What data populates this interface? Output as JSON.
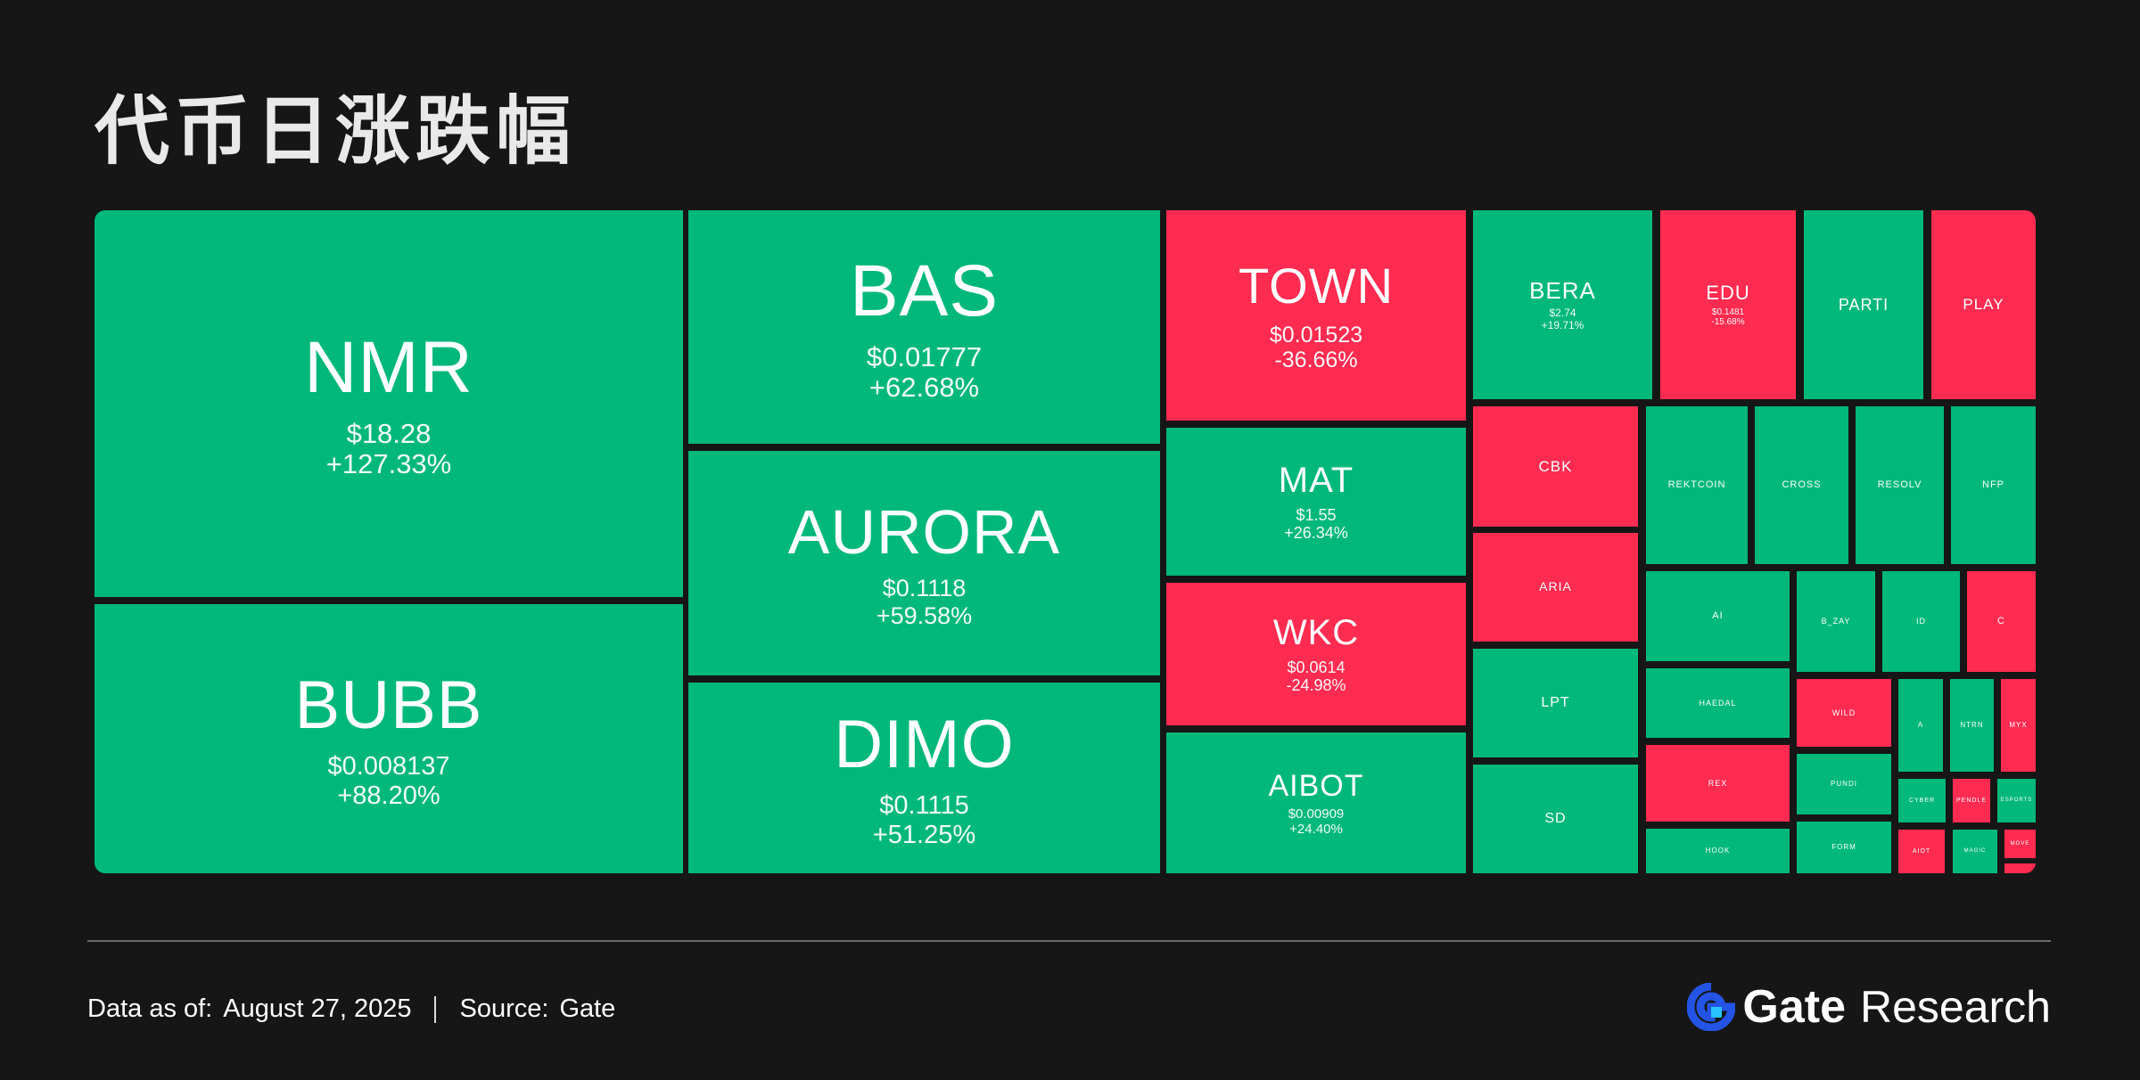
{
  "title": "代币日涨跌幅",
  "colors": {
    "up": "#00b87a",
    "down": "#ff2b50",
    "background": "#161616",
    "text": "#ffffff"
  },
  "chart_data": {
    "type": "treemap",
    "title": "代币日涨跌幅",
    "units": {
      "price": "USD",
      "change": "percent"
    },
    "tiles": [
      {
        "symbol": "NMR",
        "price": "$18.28",
        "change": "+127.33%",
        "direction": "up"
      },
      {
        "symbol": "BUBB",
        "price": "$0.008137",
        "change": "+88.20%",
        "direction": "up"
      },
      {
        "symbol": "BAS",
        "price": "$0.01777",
        "change": "+62.68%",
        "direction": "up"
      },
      {
        "symbol": "AURORA",
        "price": "$0.1118",
        "change": "+59.58%",
        "direction": "up"
      },
      {
        "symbol": "DIMO",
        "price": "$0.1115",
        "change": "+51.25%",
        "direction": "up"
      },
      {
        "symbol": "TOWN",
        "price": "$0.01523",
        "change": "-36.66%",
        "direction": "down"
      },
      {
        "symbol": "MAT",
        "price": "$1.55",
        "change": "+26.34%",
        "direction": "up"
      },
      {
        "symbol": "WKC",
        "price": "$0.0614",
        "change": "-24.98%",
        "direction": "down"
      },
      {
        "symbol": "AIBOT",
        "price": "$0.00909",
        "change": "+24.40%",
        "direction": "up"
      },
      {
        "symbol": "BERA",
        "price": "$2.74",
        "change": "+19.71%",
        "direction": "up"
      },
      {
        "symbol": "EDU",
        "price": "$0.1481",
        "change": "-15.68%",
        "direction": "down"
      },
      {
        "symbol": "PARTI",
        "price": "",
        "change": "",
        "direction": "up"
      },
      {
        "symbol": "PLAY",
        "price": "",
        "change": "",
        "direction": "down"
      },
      {
        "symbol": "CBK",
        "price": "",
        "change": "",
        "direction": "down"
      },
      {
        "symbol": "ARIA",
        "price": "",
        "change": "",
        "direction": "down"
      },
      {
        "symbol": "LPT",
        "price": "",
        "change": "",
        "direction": "up"
      },
      {
        "symbol": "SD",
        "price": "",
        "change": "",
        "direction": "up"
      },
      {
        "symbol": "REKTCOIN",
        "price": "",
        "change": "",
        "direction": "up"
      },
      {
        "symbol": "CROSS",
        "price": "",
        "change": "",
        "direction": "up"
      },
      {
        "symbol": "RESOLV",
        "price": "",
        "change": "",
        "direction": "up"
      },
      {
        "symbol": "NFP",
        "price": "",
        "change": "",
        "direction": "up"
      },
      {
        "symbol": "AI",
        "price": "",
        "change": "",
        "direction": "up"
      },
      {
        "symbol": "B_ZAY",
        "price": "",
        "change": "",
        "direction": "up"
      },
      {
        "symbol": "ID",
        "price": "",
        "change": "",
        "direction": "up"
      },
      {
        "symbol": "C",
        "price": "",
        "change": "",
        "direction": "down"
      },
      {
        "symbol": "HAEDAL",
        "price": "",
        "change": "",
        "direction": "up"
      },
      {
        "symbol": "WILD",
        "price": "",
        "change": "",
        "direction": "down"
      },
      {
        "symbol": "A",
        "price": "",
        "change": "",
        "direction": "up"
      },
      {
        "symbol": "NTRN",
        "price": "",
        "change": "",
        "direction": "up"
      },
      {
        "symbol": "MYX",
        "price": "",
        "change": "",
        "direction": "down"
      },
      {
        "symbol": "REX",
        "price": "",
        "change": "",
        "direction": "down"
      },
      {
        "symbol": "PUNDI",
        "price": "",
        "change": "",
        "direction": "up"
      },
      {
        "symbol": "CYBER",
        "price": "",
        "change": "",
        "direction": "up"
      },
      {
        "symbol": "PENDLE",
        "price": "",
        "change": "",
        "direction": "down"
      },
      {
        "symbol": "ESPORTS",
        "price": "",
        "change": "",
        "direction": "up"
      },
      {
        "symbol": "HOOK",
        "price": "",
        "change": "",
        "direction": "up"
      },
      {
        "symbol": "FORM",
        "price": "",
        "change": "",
        "direction": "up"
      },
      {
        "symbol": "AIOT",
        "price": "",
        "change": "",
        "direction": "down"
      },
      {
        "symbol": "MAGIC",
        "price": "",
        "change": "",
        "direction": "up"
      },
      {
        "symbol": "MOVE",
        "price": "",
        "change": "",
        "direction": "down"
      },
      {
        "symbol": "",
        "price": "",
        "change": "",
        "direction": "down"
      }
    ]
  },
  "footer": {
    "data_label": "Data as of:",
    "data_date": "August  27, 2025",
    "source_label": "Source:",
    "source_value": "Gate"
  },
  "brand": {
    "name": "Gate",
    "suffix": "Research",
    "icon": "gate-logo-icon",
    "icon_color": "#2354e6"
  }
}
